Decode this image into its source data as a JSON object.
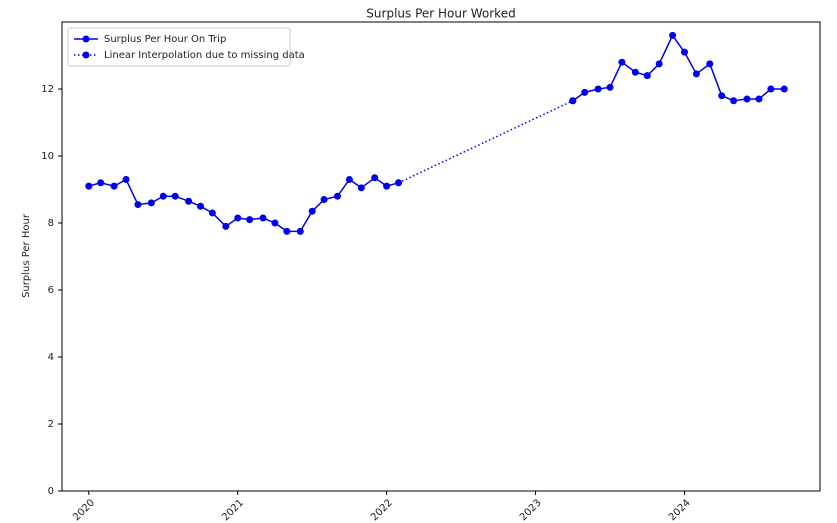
{
  "chart_data": {
    "type": "line",
    "title": "Surplus Per Hour Worked",
    "y_label": "Surplus Per Hour",
    "xlim": [
      2019.82,
      2024.91
    ],
    "xticks": [
      2020,
      2021,
      2022,
      2023,
      2024
    ],
    "ylim": [
      0,
      14
    ],
    "yticks": [
      0,
      2,
      4,
      6,
      8,
      10,
      12
    ],
    "grid": false,
    "legend": "upper left",
    "series": [
      {
        "name": "Surplus Per Hour On Trip",
        "color": "#0000ee",
        "linestyle": "solid",
        "marker": "circle",
        "x": [
          2020,
          2020.08,
          2020.17,
          2020.25,
          2020.33,
          2020.42,
          2020.5,
          2020.58,
          2020.67,
          2020.75,
          2020.83,
          2020.92,
          2021,
          2021.08,
          2021.17,
          2021.25,
          2021.33,
          2021.42,
          2021.5,
          2021.58,
          2021.67,
          2021.75,
          2021.83,
          2021.92,
          2022,
          2022.08,
          2022.67,
          2023.25,
          2023.33,
          2023.42,
          2023.5,
          2023.58,
          2023.67,
          2023.75,
          2023.83,
          2023.92,
          2024,
          2024.08,
          2024.17,
          2024.25,
          2024.33,
          2024.42,
          2024.5,
          2024.58,
          2024.67
        ],
        "values": [
          9.1,
          9.2,
          9.1,
          9.3,
          8.55,
          8.6,
          8.8,
          8.8,
          8.65,
          8.5,
          8.3,
          7.9,
          8.15,
          8.1,
          8.15,
          8.0,
          7.75,
          7.75,
          8.35,
          8.7,
          8.8,
          9.3,
          9.05,
          9.35,
          9.1,
          9.2,
          null,
          11.65,
          11.9,
          12.0,
          12.05,
          12.8,
          12.5,
          12.4,
          12.75,
          13.6,
          13.1,
          12.45,
          12.75,
          11.8,
          11.65,
          11.7,
          11.7,
          12.0,
          12.0
        ]
      },
      {
        "name": "Linear Interpolation due to missing data",
        "color": "#0000ee",
        "linestyle": "dotted",
        "marker": "circle",
        "x": [
          2022.08,
          2023.25
        ],
        "values": [
          9.2,
          11.65
        ]
      }
    ]
  }
}
